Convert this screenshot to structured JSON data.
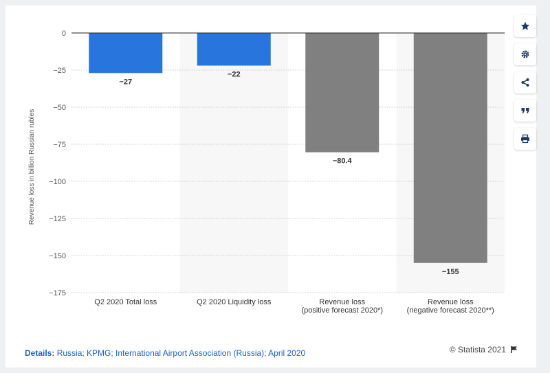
{
  "chart_data": {
    "type": "bar",
    "categories": [
      [
        "Q2 2020 Total loss"
      ],
      [
        "Q2 2020 Liquidity loss"
      ],
      [
        "Revenue loss",
        "(positive forecast 2020*)"
      ],
      [
        "Revenue loss",
        "(negative forecast 2020**)"
      ]
    ],
    "values": [
      -27,
      -22,
      -80.4,
      -155
    ],
    "value_labels": [
      "−27",
      "−22",
      "−80.4",
      "−155"
    ],
    "bar_colors": [
      "#2876dd",
      "#2876dd",
      "#808080",
      "#808080"
    ],
    "ylabel": "Revenue loss in billion Russian rubles",
    "ylim": [
      -175,
      0
    ],
    "yticks": [
      0,
      -25,
      -50,
      -75,
      -100,
      -125,
      -150,
      -175
    ],
    "ytick_labels": [
      "0",
      "−25",
      "−50",
      "−75",
      "−100",
      "−125",
      "−150",
      "−175"
    ],
    "grid": true
  },
  "footer": {
    "details_label": "Details:",
    "details_text": " Russia; KPMG; International Airport Association (Russia); April 2020",
    "credit": "© Statista 2021"
  },
  "toolbar": {
    "icons": [
      "star-icon",
      "gear-icon",
      "share-icon",
      "quote-icon",
      "print-icon"
    ]
  },
  "colors": {
    "blue": "#2876dd",
    "gray": "#808080",
    "band": "#f7f7f7",
    "grid": "#c8c8c8"
  }
}
